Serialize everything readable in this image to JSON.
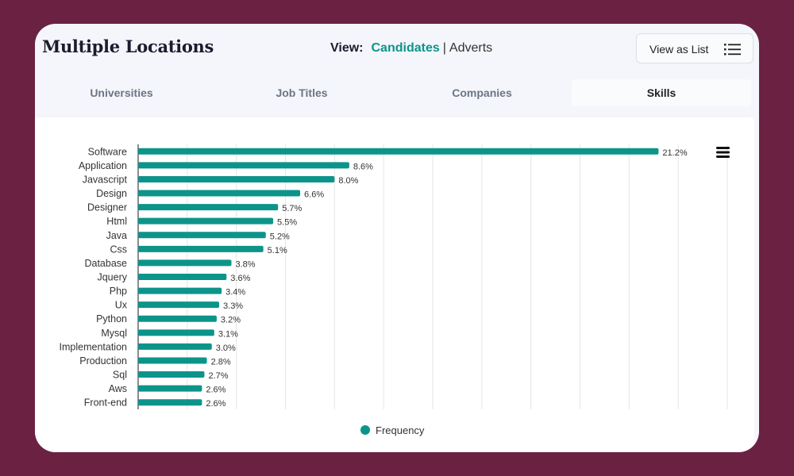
{
  "header": {
    "title": "Multiple Locations",
    "view_label": "View:",
    "view_active": "Candidates",
    "view_separator": "|",
    "view_inactive": "Adverts",
    "list_button": "View as List"
  },
  "tabs": [
    {
      "label": "Universities"
    },
    {
      "label": "Job Titles"
    },
    {
      "label": "Companies"
    },
    {
      "label": "Skills"
    }
  ],
  "icons": {
    "list": "list-icon",
    "menu": "hamburger-menu-icon"
  },
  "colors": {
    "accent": "#0d948a",
    "background": "#6b2142"
  },
  "chart_data": {
    "type": "bar",
    "orientation": "horizontal",
    "categories": [
      "Software",
      "Application",
      "Javascript",
      "Design",
      "Designer",
      "Html",
      "Java",
      "Css",
      "Database",
      "Jquery",
      "Php",
      "Ux",
      "Python",
      "Mysql",
      "Implementation",
      "Production",
      "Sql",
      "Aws",
      "Front-end"
    ],
    "values": [
      21.2,
      8.6,
      8.0,
      6.6,
      5.7,
      5.5,
      5.2,
      5.1,
      3.8,
      3.6,
      3.4,
      3.3,
      3.2,
      3.1,
      3.0,
      2.8,
      2.7,
      2.6,
      2.6
    ],
    "data_labels": [
      "21.2%",
      "8.6%",
      "8.0%",
      "6.6%",
      "5.7%",
      "5.5%",
      "5.2%",
      "5.1%",
      "3.8%",
      "3.6%",
      "3.4%",
      "3.3%",
      "3.2%",
      "3.1%",
      "3.0%",
      "2.8%",
      "2.7%",
      "2.6%",
      "2.6%"
    ],
    "series": [
      {
        "name": "Frequency",
        "color": "#0d948a"
      }
    ],
    "xlim": [
      0,
      24
    ],
    "gridlines": 12,
    "grid": true,
    "legend": "bottom-center",
    "value_suffix": "%"
  }
}
